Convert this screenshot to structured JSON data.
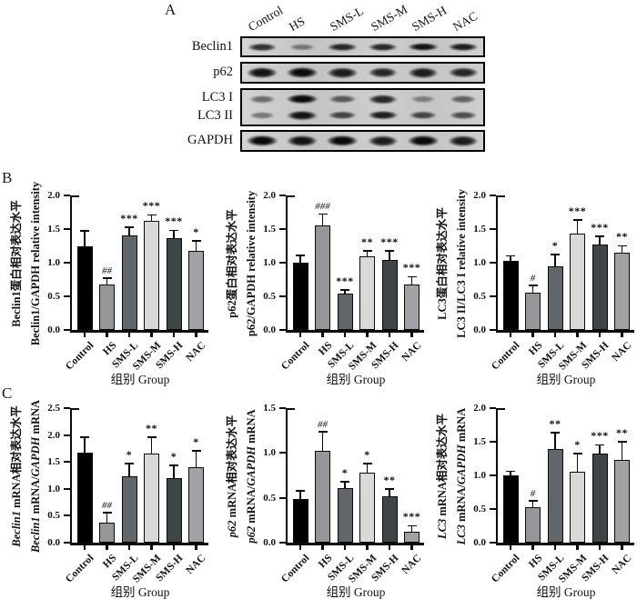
{
  "panel_labels": {
    "a": "A",
    "b": "B",
    "c": "C"
  },
  "groups": [
    "Control",
    "HS",
    "SMS-L",
    "SMS-M",
    "SMS-H",
    "NAC"
  ],
  "group_colors": [
    "#000000",
    "#95959a",
    "#61666a",
    "#d9d9d8",
    "#3d4546",
    "#a2a2a6"
  ],
  "western_blot": {
    "lane_labels": [
      "Control",
      "HS",
      "SMS-L",
      "SMS-M",
      "SMS-H",
      "NAC"
    ],
    "boxes": [
      {
        "labels": [
          "Beclin1"
        ],
        "bands": [
          [
            0.8,
            0.45,
            0.85,
            0.85,
            0.95,
            0.9
          ]
        ]
      },
      {
        "labels": [
          "p62"
        ],
        "bands": [
          [
            0.95,
            1.0,
            0.9,
            0.85,
            0.9,
            0.85
          ]
        ]
      },
      {
        "labels": [
          "LC3 I",
          "LC3 II"
        ],
        "bands": [
          [
            0.5,
            1.0,
            0.6,
            0.85,
            0.4,
            0.55
          ],
          [
            0.45,
            0.95,
            0.7,
            0.9,
            0.7,
            0.65
          ]
        ]
      },
      {
        "labels": [
          "GAPDH"
        ],
        "bands": [
          [
            1.0,
            0.95,
            1.0,
            0.9,
            1.0,
            0.9
          ]
        ]
      }
    ]
  },
  "chart_data": [
    {
      "id": "b1",
      "type": "bar",
      "panel": "B",
      "ylabel_zh": "Beclin1蛋白相对表达水平",
      "ylabel_en": "Beclin1/GAPDH relative intensity",
      "italics": [],
      "ylim": [
        0,
        2.0
      ],
      "ytick_step": 0.5,
      "xlabel": "组别 Group",
      "categories": [
        "Control",
        "HS",
        "SMS-L",
        "SMS-M",
        "SMS-H",
        "NAC"
      ],
      "values": [
        1.25,
        0.68,
        1.4,
        1.62,
        1.36,
        1.18
      ],
      "errors": [
        0.21,
        0.08,
        0.12,
        0.08,
        0.11,
        0.13
      ],
      "annotations": [
        "",
        "##",
        "***",
        "***",
        "***",
        "*"
      ]
    },
    {
      "id": "b2",
      "type": "bar",
      "panel": "B",
      "ylabel_zh": "p62蛋白相对表达水平",
      "ylabel_en": "p62/GAPDH relative intensity",
      "italics": [],
      "ylim": [
        0,
        2.0
      ],
      "ytick_step": 0.5,
      "xlabel": "组别 Group",
      "categories": [
        "Control",
        "HS",
        "SMS-L",
        "SMS-M",
        "SMS-H",
        "NAC"
      ],
      "values": [
        1.0,
        1.55,
        0.54,
        1.09,
        1.04,
        0.68
      ],
      "errors": [
        0.1,
        0.16,
        0.04,
        0.07,
        0.12,
        0.1
      ],
      "annotations": [
        "",
        "###",
        "***",
        "**",
        "***",
        "***"
      ]
    },
    {
      "id": "b3",
      "type": "bar",
      "panel": "B",
      "ylabel_zh": "LC3蛋白相对表达水平",
      "ylabel_en": "LC3 II/LC3 I relative intensity",
      "italics": [],
      "ylim": [
        0,
        2.0
      ],
      "ytick_step": 0.5,
      "xlabel": "组别 Group",
      "categories": [
        "Control",
        "HS",
        "SMS-L",
        "SMS-M",
        "SMS-H",
        "NAC"
      ],
      "values": [
        1.03,
        0.55,
        0.95,
        1.43,
        1.27,
        1.15
      ],
      "errors": [
        0.06,
        0.1,
        0.16,
        0.19,
        0.11,
        0.09
      ],
      "annotations": [
        "",
        "#",
        "*",
        "***",
        "***",
        "**"
      ]
    },
    {
      "id": "c1",
      "type": "bar",
      "panel": "C",
      "ylabel_zh": "Beclin1 mRNA相对表达水平",
      "ylabel_en": "Beclin1 mRNA/GAPDH mRNA",
      "italics": [
        "Beclin1",
        "GAPDH"
      ],
      "ylim": [
        0,
        2.5
      ],
      "ytick_step": 0.5,
      "xlabel": "组别 Group",
      "categories": [
        "Control",
        "HS",
        "SMS-L",
        "SMS-M",
        "SMS-H",
        "NAC"
      ],
      "values": [
        1.67,
        0.37,
        1.24,
        1.65,
        1.2,
        1.41
      ],
      "errors": [
        0.28,
        0.17,
        0.22,
        0.3,
        0.22,
        0.28
      ],
      "annotations": [
        "",
        "##",
        "*",
        "**",
        "*",
        "*"
      ]
    },
    {
      "id": "c2",
      "type": "bar",
      "panel": "C",
      "ylabel_zh": "p62 mRNA相对表达水平",
      "ylabel_en": "p62 mRNA/GAPDH mRNA",
      "italics": [
        "p62",
        "GAPDH"
      ],
      "ylim": [
        0,
        1.5
      ],
      "ytick_step": 0.5,
      "xlabel": "组别 Group",
      "categories": [
        "Control",
        "HS",
        "SMS-L",
        "SMS-M",
        "SMS-H",
        "NAC"
      ],
      "values": [
        0.49,
        1.02,
        0.61,
        0.78,
        0.52,
        0.12
      ],
      "errors": [
        0.08,
        0.21,
        0.06,
        0.09,
        0.07,
        0.06
      ],
      "annotations": [
        "",
        "##",
        "*",
        "*",
        "**",
        "***"
      ]
    },
    {
      "id": "c3",
      "type": "bar",
      "panel": "C",
      "ylabel_zh": "LC3 mRNA相对表达水平",
      "ylabel_en": "LC3 mRNA/GAPDH mRNA",
      "italics": [
        "LC3",
        "GAPDH"
      ],
      "ylim": [
        0,
        2.0
      ],
      "ytick_step": 0.5,
      "xlabel": "组别 Group",
      "categories": [
        "Control",
        "HS",
        "SMS-L",
        "SMS-M",
        "SMS-H",
        "NAC"
      ],
      "values": [
        1.0,
        0.53,
        1.39,
        1.06,
        1.33,
        1.23
      ],
      "errors": [
        0.05,
        0.08,
        0.23,
        0.25,
        0.11,
        0.26
      ],
      "annotations": [
        "",
        "#",
        "**",
        "*",
        "***",
        "**"
      ]
    }
  ]
}
